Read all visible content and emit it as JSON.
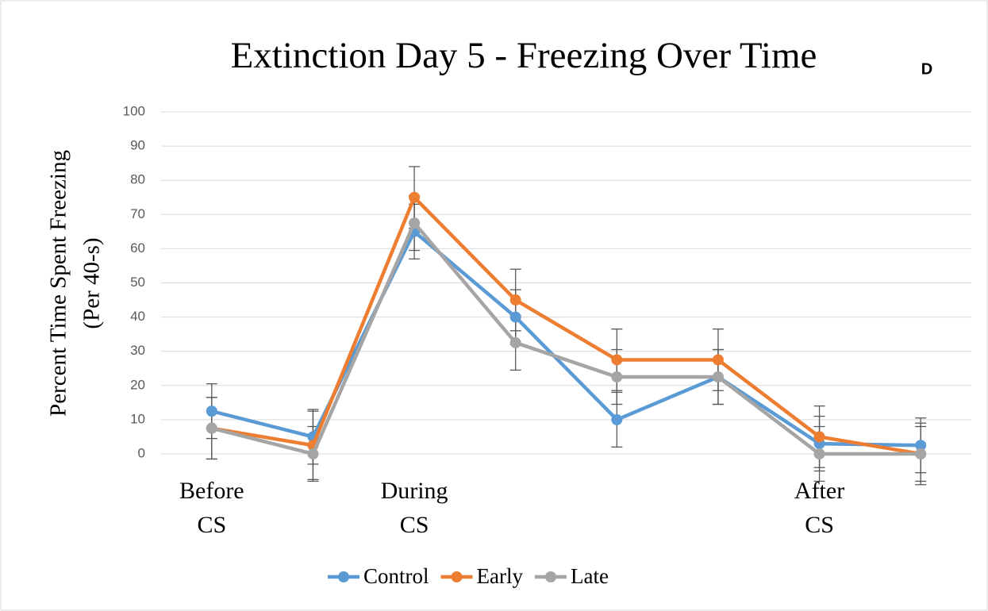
{
  "chart_data": {
    "type": "line",
    "title": "Extinction Day 5 - Freezing Over Time",
    "panel_label": "D",
    "ylabel": [
      "Percent Time Spent Freezing",
      "(Per 40-s)"
    ],
    "categories": [
      "Before\nCS",
      null,
      "During\nCS",
      null,
      null,
      null,
      "After\nCS",
      null
    ],
    "series": [
      {
        "name": "Control",
        "color": "#5b9bd5",
        "values": [
          12.5,
          5,
          65,
          40,
          10,
          22.5,
          3,
          2.5
        ],
        "errors": [
          8,
          8,
          8,
          8,
          8,
          8,
          8,
          8
        ]
      },
      {
        "name": "Early",
        "color": "#ed7d31",
        "values": [
          7.5,
          2.5,
          75,
          45,
          27.5,
          27.5,
          5,
          0
        ],
        "errors": [
          9,
          10,
          9,
          9,
          9,
          9,
          9,
          9
        ]
      },
      {
        "name": "Late",
        "color": "#a5a5a5",
        "values": [
          7.5,
          0,
          67.5,
          32.5,
          22.5,
          22.5,
          0,
          0
        ],
        "errors": [
          9,
          8,
          8,
          8,
          8,
          8,
          8,
          8
        ]
      }
    ],
    "ylim": [
      0,
      100
    ],
    "yticks": [
      0,
      10,
      20,
      30,
      40,
      50,
      60,
      70,
      80,
      90,
      100
    ],
    "grid": true,
    "legend": "bottom"
  }
}
